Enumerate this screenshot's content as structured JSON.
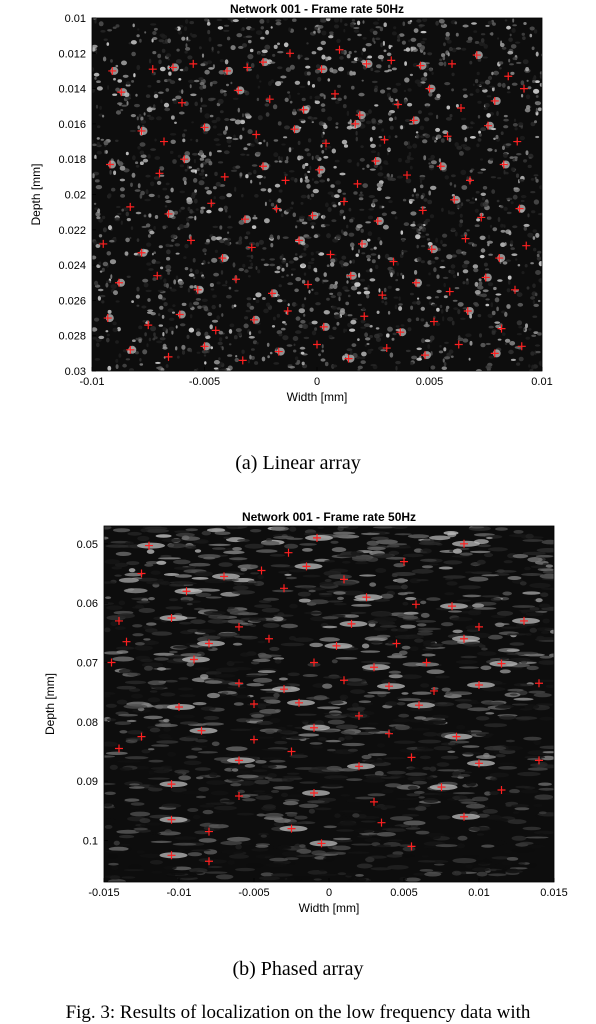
{
  "chart_data": [
    {
      "type": "scatter",
      "title": "Network 001 - Frame rate 50Hz",
      "xlabel": "Width [mm]",
      "ylabel": "Depth [mm]",
      "xlim": [
        -0.01,
        0.01
      ],
      "ylim": [
        0.01,
        0.03
      ],
      "y_inverted": true,
      "xticks": [
        "-0.01",
        "-0.005",
        "0",
        "0.005",
        "0.01"
      ],
      "yticks": [
        "0.01",
        "0.012",
        "0.014",
        "0.016",
        "0.018",
        "0.02",
        "0.022",
        "0.024",
        "0.026",
        "0.028",
        "0.03"
      ],
      "background": "speckle ultrasound image (grayscale)",
      "marker": "red plus",
      "marker_color": "#ff2020",
      "points": [
        [
          -0.0091,
          0.013
        ],
        [
          -0.0073,
          0.0129
        ],
        [
          -0.0064,
          0.0128
        ],
        [
          -0.0055,
          0.0126
        ],
        [
          -0.004,
          0.013
        ],
        [
          -0.0031,
          0.0128
        ],
        [
          -0.0024,
          0.0125
        ],
        [
          -0.0012,
          0.012
        ],
        [
          0.0002,
          0.0129
        ],
        [
          0.001,
          0.0118
        ],
        [
          0.0022,
          0.0126
        ],
        [
          0.0033,
          0.0124
        ],
        [
          0.0046,
          0.0127
        ],
        [
          0.006,
          0.0126
        ],
        [
          0.0071,
          0.0121
        ],
        [
          0.0085,
          0.0133
        ],
        [
          -0.0087,
          0.0142
        ],
        [
          -0.006,
          0.0148
        ],
        [
          -0.0035,
          0.0141
        ],
        [
          -0.0021,
          0.0146
        ],
        [
          -0.0006,
          0.0152
        ],
        [
          0.0008,
          0.0143
        ],
        [
          0.0019,
          0.0155
        ],
        [
          0.0036,
          0.0149
        ],
        [
          0.005,
          0.014
        ],
        [
          0.0064,
          0.0151
        ],
        [
          0.0079,
          0.0147
        ],
        [
          0.0092,
          0.014
        ],
        [
          -0.0078,
          0.0164
        ],
        [
          -0.0068,
          0.017
        ],
        [
          -0.005,
          0.0162
        ],
        [
          -0.0027,
          0.0166
        ],
        [
          -0.001,
          0.0163
        ],
        [
          0.0004,
          0.0171
        ],
        [
          0.0017,
          0.016
        ],
        [
          0.003,
          0.0169
        ],
        [
          0.0043,
          0.0158
        ],
        [
          0.0058,
          0.0167
        ],
        [
          0.0076,
          0.0161
        ],
        [
          0.0089,
          0.017
        ],
        [
          -0.0092,
          0.0183
        ],
        [
          -0.007,
          0.0188
        ],
        [
          -0.0059,
          0.018
        ],
        [
          -0.0041,
          0.019
        ],
        [
          -0.0024,
          0.0184
        ],
        [
          -0.0014,
          0.0192
        ],
        [
          0.0001,
          0.0186
        ],
        [
          0.0018,
          0.0194
        ],
        [
          0.0026,
          0.0181
        ],
        [
          0.004,
          0.0189
        ],
        [
          0.0055,
          0.0184
        ],
        [
          0.0068,
          0.0192
        ],
        [
          0.0083,
          0.0183
        ],
        [
          -0.0083,
          0.0207
        ],
        [
          -0.0066,
          0.0211
        ],
        [
          -0.0047,
          0.0205
        ],
        [
          -0.0032,
          0.0214
        ],
        [
          -0.0018,
          0.0208
        ],
        [
          -0.0002,
          0.0212
        ],
        [
          0.0012,
          0.0204
        ],
        [
          0.0027,
          0.0215
        ],
        [
          0.0047,
          0.0209
        ],
        [
          0.0061,
          0.0203
        ],
        [
          0.0073,
          0.0213
        ],
        [
          0.009,
          0.0208
        ],
        [
          -0.0095,
          0.0228
        ],
        [
          -0.0078,
          0.0233
        ],
        [
          -0.0056,
          0.0226
        ],
        [
          -0.0042,
          0.0236
        ],
        [
          -0.0029,
          0.023
        ],
        [
          -0.0008,
          0.0226
        ],
        [
          0.0006,
          0.0234
        ],
        [
          0.002,
          0.0228
        ],
        [
          0.0034,
          0.0238
        ],
        [
          0.0051,
          0.0231
        ],
        [
          0.0066,
          0.0225
        ],
        [
          0.0081,
          0.0236
        ],
        [
          0.0093,
          0.0229
        ],
        [
          -0.0088,
          0.025
        ],
        [
          -0.0071,
          0.0246
        ],
        [
          -0.0053,
          0.0254
        ],
        [
          -0.0036,
          0.0248
        ],
        [
          -0.002,
          0.0256
        ],
        [
          -0.0004,
          0.0251
        ],
        [
          0.0015,
          0.0246
        ],
        [
          0.0029,
          0.0257
        ],
        [
          0.0044,
          0.025
        ],
        [
          0.0059,
          0.0255
        ],
        [
          0.0075,
          0.0247
        ],
        [
          0.0088,
          0.0254
        ],
        [
          -0.0093,
          0.027
        ],
        [
          -0.0075,
          0.0274
        ],
        [
          -0.0061,
          0.0268
        ],
        [
          -0.0045,
          0.0277
        ],
        [
          -0.0028,
          0.0271
        ],
        [
          -0.0013,
          0.0266
        ],
        [
          0.0003,
          0.0275
        ],
        [
          0.0021,
          0.0269
        ],
        [
          0.0037,
          0.0278
        ],
        [
          0.0052,
          0.0272
        ],
        [
          0.0067,
          0.0266
        ],
        [
          0.0082,
          0.0276
        ],
        [
          -0.0083,
          0.0288
        ],
        [
          -0.0066,
          0.0292
        ],
        [
          -0.005,
          0.0286
        ],
        [
          -0.0033,
          0.0294
        ],
        [
          -0.0017,
          0.0289
        ],
        [
          0.0,
          0.0285
        ],
        [
          0.0014,
          0.0293
        ],
        [
          0.0031,
          0.0287
        ],
        [
          0.0048,
          0.0291
        ],
        [
          0.0063,
          0.0285
        ],
        [
          0.0079,
          0.029
        ],
        [
          0.0091,
          0.0286
        ]
      ]
    },
    {
      "type": "scatter",
      "title": "Network 001 - Frame rate 50Hz",
      "xlabel": "Width [mm]",
      "ylabel": "Depth [mm]",
      "xlim": [
        -0.015,
        0.015
      ],
      "ylim": [
        0.047,
        0.107
      ],
      "y_inverted": true,
      "xticks": [
        "-0.015",
        "-0.01",
        "-0.005",
        "0",
        "0.005",
        "0.01",
        "0.015"
      ],
      "yticks": [
        "0.05",
        "0.06",
        "0.07",
        "0.08",
        "0.09",
        "0.1"
      ],
      "background": "phased-array ultrasound image (grayscale)",
      "marker": "red plus",
      "marker_color": "#ff2020",
      "points": [
        [
          -0.012,
          0.0503
        ],
        [
          -0.0027,
          0.0515
        ],
        [
          -0.0008,
          0.049
        ],
        [
          0.005,
          0.053
        ],
        [
          0.009,
          0.05
        ],
        [
          -0.0125,
          0.055
        ],
        [
          -0.007,
          0.0555
        ],
        [
          -0.0045,
          0.0545
        ],
        [
          -0.0015,
          0.0538
        ],
        [
          0.001,
          0.056
        ],
        [
          -0.0095,
          0.058
        ],
        [
          -0.003,
          0.0575
        ],
        [
          0.0025,
          0.059
        ],
        [
          0.0058,
          0.0602
        ],
        [
          0.0082,
          0.0605
        ],
        [
          -0.014,
          0.063
        ],
        [
          -0.0105,
          0.0625
        ],
        [
          -0.006,
          0.064
        ],
        [
          0.0015,
          0.0635
        ],
        [
          0.01,
          0.064
        ],
        [
          0.013,
          0.063
        ],
        [
          -0.0135,
          0.0665
        ],
        [
          -0.008,
          0.0668
        ],
        [
          -0.004,
          0.066
        ],
        [
          0.0005,
          0.0672
        ],
        [
          0.0045,
          0.0668
        ],
        [
          0.009,
          0.066
        ],
        [
          -0.0145,
          0.07
        ],
        [
          -0.009,
          0.0695
        ],
        [
          -0.001,
          0.07
        ],
        [
          0.003,
          0.0708
        ],
        [
          0.0065,
          0.07
        ],
        [
          0.0115,
          0.0702
        ],
        [
          -0.006,
          0.0735
        ],
        [
          -0.003,
          0.0745
        ],
        [
          0.001,
          0.073
        ],
        [
          0.004,
          0.074
        ],
        [
          0.007,
          0.0748
        ],
        [
          0.01,
          0.0738
        ],
        [
          0.014,
          0.0735
        ],
        [
          -0.01,
          0.0775
        ],
        [
          -0.005,
          0.077
        ],
        [
          -0.002,
          0.0768
        ],
        [
          0.002,
          0.079
        ],
        [
          0.006,
          0.0772
        ],
        [
          -0.0125,
          0.0825
        ],
        [
          -0.0085,
          0.0815
        ],
        [
          -0.005,
          0.083
        ],
        [
          -0.001,
          0.081
        ],
        [
          0.004,
          0.082
        ],
        [
          0.0085,
          0.0825
        ],
        [
          -0.014,
          0.0845
        ],
        [
          -0.006,
          0.0865
        ],
        [
          -0.0025,
          0.085
        ],
        [
          0.002,
          0.0875
        ],
        [
          0.0055,
          0.086
        ],
        [
          0.01,
          0.087
        ],
        [
          0.014,
          0.0865
        ],
        [
          -0.0105,
          0.0905
        ],
        [
          -0.006,
          0.0925
        ],
        [
          -0.001,
          0.092
        ],
        [
          0.003,
          0.0935
        ],
        [
          0.0075,
          0.091
        ],
        [
          0.0115,
          0.0915
        ],
        [
          -0.0105,
          0.0965
        ],
        [
          -0.008,
          0.0985
        ],
        [
          -0.0025,
          0.098
        ],
        [
          0.0035,
          0.097
        ],
        [
          0.009,
          0.096
        ],
        [
          -0.008,
          0.1035
        ],
        [
          -0.0105,
          0.1025
        ],
        [
          0.0055,
          0.101
        ],
        [
          -0.0005,
          0.1005
        ]
      ]
    }
  ],
  "captions": {
    "a": "(a) Linear array",
    "b": "(b) Phased array",
    "figure": "Fig. 3: Results of localization on the low frequency data with"
  }
}
